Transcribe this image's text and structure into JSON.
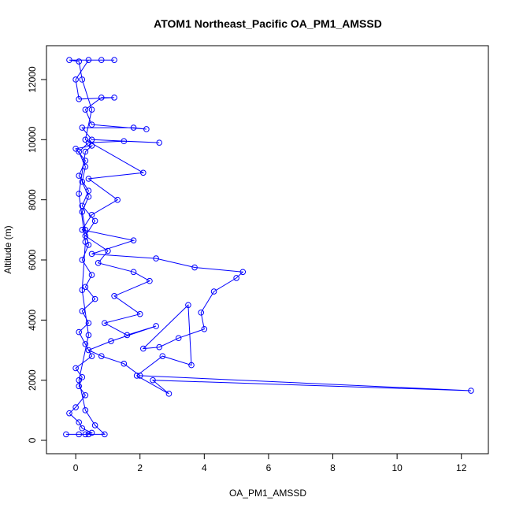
{
  "chart_data": {
    "type": "line",
    "title": "ATOM1 Northeast_Pacific OA_PM1_AMSSD",
    "x_label": "OA_PM1_AMSSD",
    "y_label": "Altitude (m)",
    "color": "#0000ff",
    "markers": true,
    "xlim": [
      -0.91,
      12.84
    ],
    "ylim": [
      -445,
      13126
    ],
    "xticks": [
      0,
      2,
      4,
      6,
      8,
      10,
      12
    ],
    "yticks": [
      0,
      2000,
      4000,
      6000,
      8000,
      10000,
      12000
    ],
    "x": [
      0.1,
      0.3,
      0.5,
      0.2,
      0.1,
      -0.2,
      0.0,
      0.3,
      0.1,
      0.2,
      0.0,
      0.5,
      0.3,
      0.1,
      0.4,
      0.2,
      0.6,
      0.3,
      0.5,
      0.2,
      0.4,
      0.3,
      0.2,
      0.4,
      0.2,
      0.3,
      0.1,
      0.4,
      1.5,
      2.6,
      0.5,
      0.2,
      1.8,
      2.2,
      0.5,
      0.3,
      0.8,
      1.2,
      0.1,
      0.0,
      0.4,
      0.8,
      1.2,
      -0.2,
      0.1,
      0.2,
      0.5,
      0.3,
      2.1,
      0.4,
      1.3,
      0.5,
      0.2,
      1.8,
      0.5,
      2.5,
      3.7,
      5.2,
      5.0,
      4.3,
      3.9,
      4.0,
      3.2,
      2.6,
      2.1,
      3.5,
      3.6,
      2.7,
      1.9,
      2.9,
      2.4,
      12.3,
      2.0,
      1.5,
      0.8,
      0.4,
      1.1,
      2.5,
      1.6,
      0.9,
      2.0,
      1.2,
      2.3,
      1.8,
      0.7,
      1.0,
      0.3,
      0.6,
      0.2,
      0.4,
      0.1,
      0.3,
      0.0,
      0.5,
      0.3,
      0.1,
      0.3,
      0.2,
      0.4,
      0.1,
      0.3,
      0.6,
      0.9,
      0.4,
      -0.3
    ],
    "y": [
      200,
      200,
      250,
      400,
      600,
      900,
      1100,
      1500,
      1800,
      2100,
      2400,
      2800,
      3200,
      3600,
      3900,
      4300,
      4700,
      5100,
      5500,
      6000,
      6500,
      7000,
      7600,
      8100,
      8600,
      9100,
      9600,
      9900,
      9950,
      9900,
      10000,
      10400,
      10400,
      10350,
      10500,
      11000,
      11400,
      11400,
      11350,
      12000,
      12650,
      12650,
      12650,
      12650,
      12600,
      12000,
      11000,
      10000,
      8900,
      8700,
      8000,
      7500,
      7000,
      6650,
      6200,
      6050,
      5750,
      5600,
      5400,
      4950,
      4250,
      3700,
      3400,
      3100,
      3050,
      4500,
      2500,
      2800,
      2150,
      1550,
      2000,
      1650,
      2150,
      2550,
      2800,
      3000,
      3300,
      3800,
      3500,
      3900,
      4200,
      4800,
      5300,
      5600,
      5900,
      6300,
      6800,
      7300,
      7800,
      8300,
      8800,
      9300,
      9700,
      9800,
      9600,
      8200,
      6600,
      5000,
      3500,
      2000,
      1000,
      500,
      200,
      200,
      200
    ]
  }
}
